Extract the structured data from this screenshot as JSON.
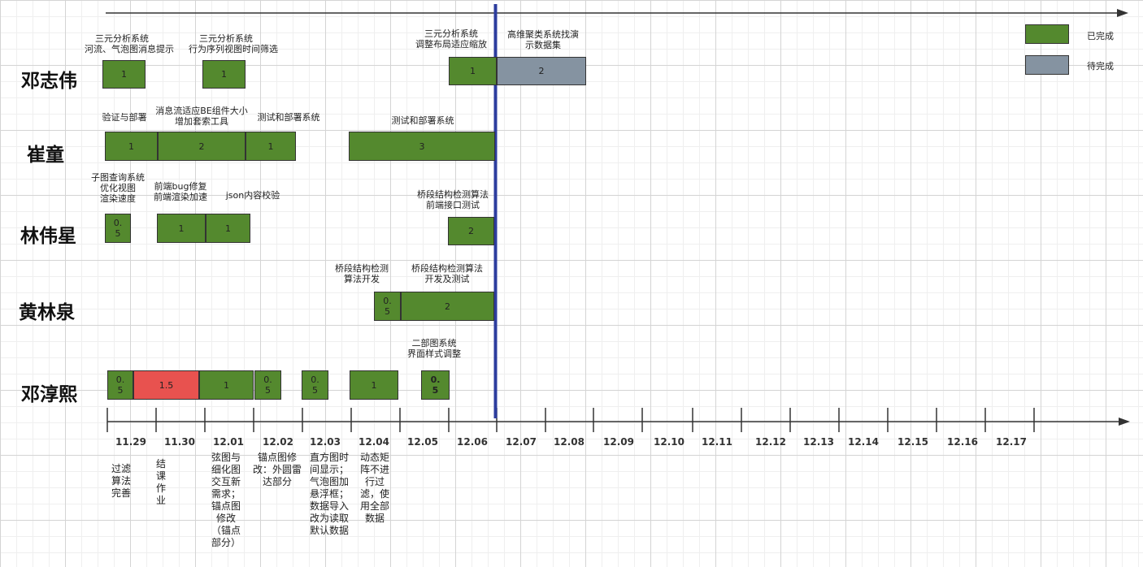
{
  "colors": {
    "done": "#54892e",
    "todo": "#8593a1",
    "over": "#e8524f",
    "today_line": "#2d3d9e",
    "axis": "#333333"
  },
  "legend": {
    "done_label": "已完成",
    "todo_label": "待完成"
  },
  "people": [
    "邓志伟",
    "崔童",
    "林伟星",
    "黄林泉",
    "邓淳熙"
  ],
  "dates": [
    "11.29",
    "11.30",
    "12.01",
    "12.02",
    "12.03",
    "12.04",
    "12.05",
    "12.06",
    "12.07",
    "12.08",
    "12.09",
    "12.10",
    "12.11",
    "12.12",
    "12.13",
    "12.14",
    "12.15",
    "12.16",
    "12.17"
  ],
  "bars": [
    {
      "person": "邓志伟",
      "value": "1",
      "status": "done"
    },
    {
      "person": "邓志伟",
      "value": "1",
      "status": "done"
    },
    {
      "person": "邓志伟",
      "value": "1",
      "status": "done"
    },
    {
      "person": "邓志伟",
      "value": "2",
      "status": "todo"
    },
    {
      "person": "崔童",
      "value": "1",
      "status": "done"
    },
    {
      "person": "崔童",
      "value": "2",
      "status": "done"
    },
    {
      "person": "崔童",
      "value": "1",
      "status": "done"
    },
    {
      "person": "崔童",
      "value": "3",
      "status": "done"
    },
    {
      "person": "林伟星",
      "value": "0.\n5",
      "status": "done"
    },
    {
      "person": "林伟星",
      "value": "1",
      "status": "done"
    },
    {
      "person": "林伟星",
      "value": "1",
      "status": "done"
    },
    {
      "person": "林伟星",
      "value": "2",
      "status": "done"
    },
    {
      "person": "黄林泉",
      "value": "0.\n5",
      "status": "done"
    },
    {
      "person": "黄林泉",
      "value": "2",
      "status": "done"
    },
    {
      "person": "邓淳熙",
      "value": "0.\n5",
      "status": "done"
    },
    {
      "person": "邓淳熙",
      "value": "1.5",
      "status": "over"
    },
    {
      "person": "邓淳熙",
      "value": "1",
      "status": "done"
    },
    {
      "person": "邓淳熙",
      "value": "0.\n5",
      "status": "done"
    },
    {
      "person": "邓淳熙",
      "value": "0.\n5",
      "status": "done"
    },
    {
      "person": "邓淳熙",
      "value": "1",
      "status": "done"
    },
    {
      "person": "邓淳熙",
      "value": "0.\n5",
      "status": "done"
    }
  ],
  "task_labels": [
    "三元分析系统\n河流、气泡图消息提示",
    "三元分析系统\n行为序列视图时间筛选",
    "三元分析系统\n调整布局适应缩放",
    "高维聚类系统找演\n示数据集",
    "验证与部署",
    "消息流适应BE组件大小\n增加套索工具",
    "测试和部署系统",
    "测试和部署系统",
    "子图查询系统\n优化视图\n渲染速度",
    "前端bug修复\n前端渲染加速",
    "json内容校验",
    "桥段结构检测算法\n前端接口测试",
    "桥段结构检测\n算法开发",
    "桥段结构检测算法\n开发及测试",
    "二部图系统\n界面样式调整"
  ],
  "notes": [
    "过滤\n算法\n完善",
    "结\n课\n作\n业",
    "弦图与\n细化图\n交互新\n需求；\n锚点图\n修改\n（锚点\n部分）",
    "锚点图修\n改：外圆雷\n达部分",
    "直方图时\n间显示；\n气泡图加\n悬浮框；\n数据导入\n改为读取\n默认数据",
    "动态矩\n阵不进\n行过\n滤，使\n用全部\n数据"
  ]
}
